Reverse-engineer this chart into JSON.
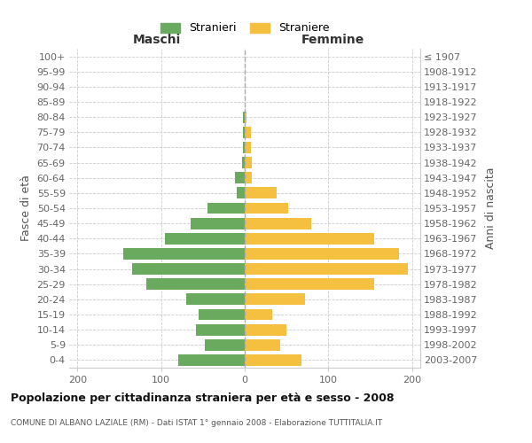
{
  "age_groups": [
    "100+",
    "95-99",
    "90-94",
    "85-89",
    "80-84",
    "75-79",
    "70-74",
    "65-69",
    "60-64",
    "55-59",
    "50-54",
    "45-49",
    "40-44",
    "35-39",
    "30-34",
    "25-29",
    "20-24",
    "15-19",
    "10-14",
    "5-9",
    "0-4"
  ],
  "birth_years": [
    "≤ 1907",
    "1908-1912",
    "1913-1917",
    "1918-1922",
    "1923-1927",
    "1928-1932",
    "1933-1937",
    "1938-1942",
    "1943-1947",
    "1948-1952",
    "1953-1957",
    "1958-1962",
    "1963-1967",
    "1968-1972",
    "1973-1977",
    "1978-1982",
    "1983-1987",
    "1988-1992",
    "1993-1997",
    "1998-2002",
    "2003-2007"
  ],
  "males": [
    0,
    0,
    0,
    0,
    2,
    2,
    2,
    3,
    12,
    10,
    45,
    65,
    95,
    145,
    135,
    118,
    70,
    55,
    58,
    48,
    80
  ],
  "females": [
    0,
    0,
    0,
    0,
    2,
    7,
    7,
    8,
    8,
    38,
    52,
    80,
    155,
    185,
    195,
    155,
    72,
    33,
    50,
    42,
    68
  ],
  "male_color": "#6aaa5e",
  "female_color": "#f5c040",
  "title": "Popolazione per cittadinanza straniera per età e sesso - 2008",
  "subtitle": "COMUNE DI ALBANO LAZIALE (RM) - Dati ISTAT 1° gennaio 2008 - Elaborazione TUTTITALIA.IT",
  "ylabel_left": "Fasce di età",
  "ylabel_right": "Anni di nascita",
  "header_left": "Maschi",
  "header_right": "Femmine",
  "legend_male": "Stranieri",
  "legend_female": "Straniere",
  "xlim": 210,
  "background_color": "#ffffff",
  "grid_color": "#cccccc",
  "title_fontsize": 9,
  "subtitle_fontsize": 6.5,
  "tick_fontsize": 8,
  "label_fontsize": 9,
  "header_fontsize": 10
}
